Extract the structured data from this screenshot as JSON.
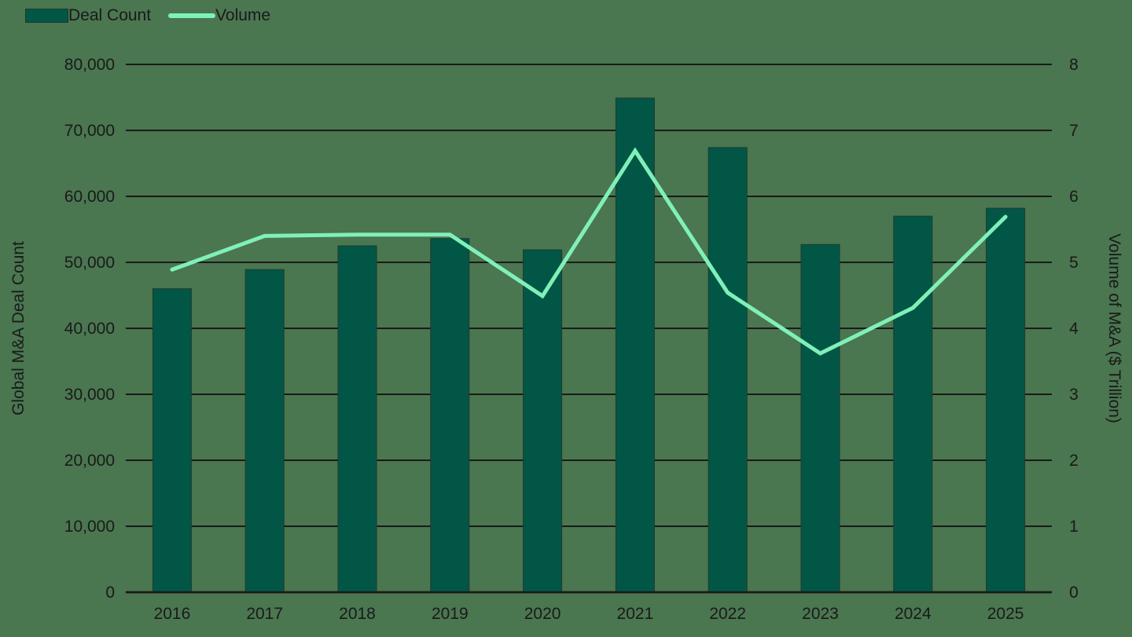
{
  "legend": [
    {
      "label": "Deal Count",
      "type": "bar",
      "color": "#025645"
    },
    {
      "label": "Volume",
      "type": "line",
      "color": "#7ff0b8"
    }
  ],
  "axes": {
    "left_title": "Global M&A Deal Count",
    "right_title": "Volume of M&A ($ Trillion)"
  },
  "colors": {
    "background": "#4a7650",
    "bar": "#025645",
    "line": "#7ff0b8",
    "grid": "#1a1a1a"
  },
  "chart_data": {
    "type": "bar",
    "title": "",
    "categories": [
      "2016",
      "2017",
      "2018",
      "2019",
      "2020",
      "2021",
      "2022",
      "2023",
      "2024",
      "2025"
    ],
    "series": [
      {
        "name": "Deal Count",
        "type": "bar",
        "axis": "left",
        "values": [
          46000,
          48900,
          52500,
          53600,
          51900,
          74900,
          67400,
          52700,
          57000,
          58200
        ]
      },
      {
        "name": "Volume",
        "type": "line",
        "axis": "right",
        "values": [
          4.89,
          5.4,
          5.42,
          5.42,
          4.49,
          6.69,
          4.54,
          3.62,
          4.31,
          5.69
        ]
      }
    ],
    "xlabel": "",
    "ylabel": "Global M&A Deal Count",
    "y2label": "Volume of M&A ($ Trillion)",
    "ylim": [
      0,
      80000
    ],
    "y2lim": [
      0,
      8
    ],
    "yticks": [
      "0",
      "10,000",
      "20,000",
      "30,000",
      "40,000",
      "50,000",
      "60,000",
      "70,000",
      "80,000"
    ],
    "y2ticks": [
      "0",
      "1",
      "2",
      "3",
      "4",
      "5",
      "6",
      "7",
      "8"
    ],
    "grid": true,
    "legend_position": "top-left"
  }
}
